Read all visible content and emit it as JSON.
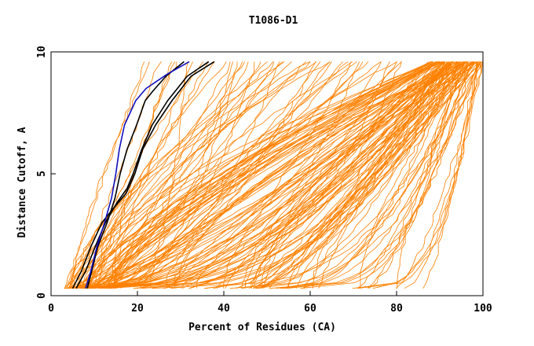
{
  "chart_data": {
    "type": "line",
    "title": "T1086-D1",
    "xlabel": "Percent of Residues (CA)",
    "ylabel": "Distance Cutoff, A",
    "xlim": [
      0,
      100
    ],
    "ylim": [
      0,
      10
    ],
    "xticks": [
      "0",
      "20",
      "40",
      "60",
      "80",
      "100"
    ],
    "yticks": [
      "0",
      "5",
      "10"
    ],
    "grid": false,
    "legend": "none",
    "colors": {
      "models": "#ff8000",
      "highlight_black": "#000000",
      "highlight_blue": "#1010c0",
      "axes": "#000000"
    },
    "highlighted_series": [
      {
        "color": "black",
        "x": [
          5.8,
          8.0,
          10.2,
          12.6,
          15.2,
          17.6,
          19.0,
          21.0,
          23.4,
          27.0,
          31.5,
          36.5
        ],
        "y": [
          0.3,
          1.0,
          2.0,
          3.0,
          3.8,
          4.4,
          5.0,
          6.0,
          7.0,
          8.0,
          9.0,
          9.6
        ]
      },
      {
        "color": "black",
        "x": [
          5.0,
          7.0,
          9.2,
          11.8,
          14.5,
          17.4,
          19.4,
          21.2,
          24.2,
          28.0,
          32.4,
          37.8
        ],
        "y": [
          0.3,
          1.0,
          2.0,
          3.0,
          3.6,
          4.2,
          5.0,
          6.0,
          7.0,
          8.0,
          9.0,
          9.6
        ]
      },
      {
        "color": "black",
        "x": [
          8.4,
          9.4,
          10.8,
          13.0,
          14.8,
          16.0,
          17.6,
          19.8,
          21.8,
          23.6,
          26.6,
          30.8
        ],
        "y": [
          0.3,
          1.0,
          2.0,
          3.0,
          4.0,
          5.0,
          6.0,
          7.0,
          8.0,
          8.4,
          9.0,
          9.6
        ]
      },
      {
        "color": "blue",
        "x": [
          8.0,
          9.2,
          10.6,
          12.4,
          14.0,
          15.0,
          15.8,
          17.0,
          19.6,
          22.0,
          27.0,
          32.0
        ],
        "y": [
          0.3,
          1.0,
          2.0,
          3.0,
          4.0,
          5.0,
          6.0,
          7.0,
          8.0,
          8.5,
          9.1,
          9.6
        ]
      }
    ],
    "model_series_description": "About 170 orange model curves spanning ~4% to ~100% of residues; their values follow."
  }
}
